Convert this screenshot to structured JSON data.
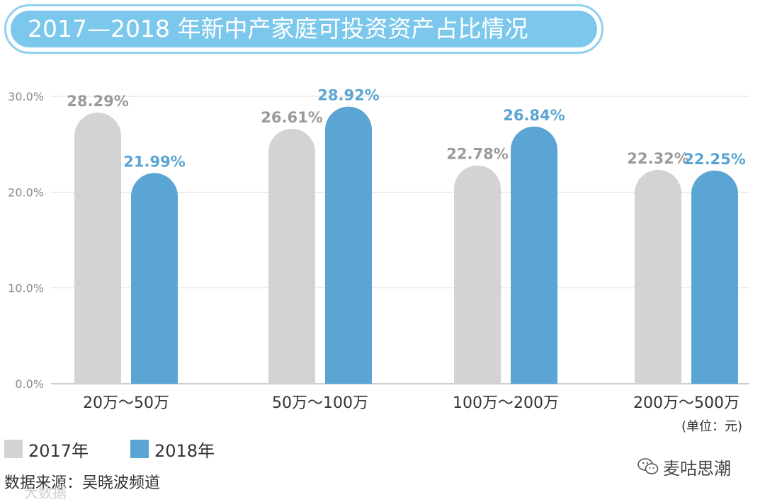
{
  "title": "2017—2018 年新中产家庭可投资资产占比情况",
  "legend": [
    {
      "label": "2017年",
      "color": "#d3d3d6"
    },
    {
      "label": "2018年",
      "color": "#5aa5d4"
    }
  ],
  "unit": "(单位：元)",
  "source": "数据来源：吴晓波频道",
  "source_ghost": "大数据",
  "brand": "麦咕思潮",
  "brand_icon": "wechat-icon",
  "chart_data": {
    "type": "bar",
    "categories": [
      "20万～50万",
      "50万～100万",
      "100万～200万",
      "200万～500万"
    ],
    "series": [
      {
        "name": "2017年",
        "values": [
          28.29,
          26.61,
          22.78,
          22.32
        ],
        "labels": [
          "28.29%",
          "26.61%",
          "22.78%",
          "22.32%"
        ],
        "color": "#d3d3d6",
        "label_color": "#9a9a9a"
      },
      {
        "name": "2018年",
        "values": [
          21.99,
          28.92,
          26.84,
          22.25
        ],
        "labels": [
          "21.99%",
          "28.92%",
          "26.84%",
          "22.25%"
        ],
        "color": "#5aa5d4",
        "label_color": "#5aa5d4"
      }
    ],
    "yticks": [
      0,
      10,
      20,
      30
    ],
    "ytick_labels": [
      "0.0%",
      "10.0%",
      "20.0%",
      "30.0%"
    ],
    "ylim": [
      0,
      30
    ],
    "grid": true
  }
}
